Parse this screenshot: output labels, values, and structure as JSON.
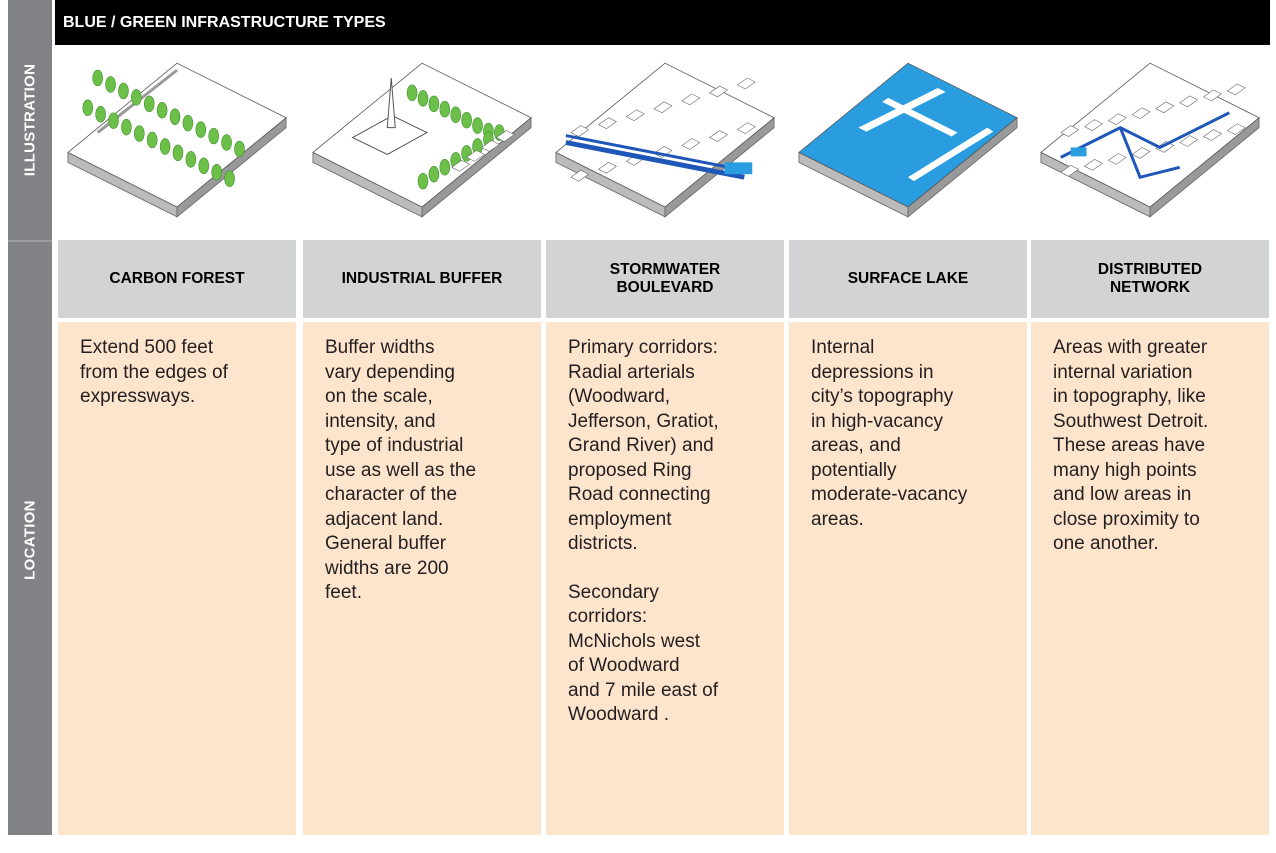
{
  "header": {
    "title": "BLUE / GREEN INFRASTRUCTURE TYPES"
  },
  "row_labels": {
    "illustration": "ILLUSTRATION",
    "location": "LOCATION"
  },
  "columns": [
    {
      "title": [
        "CARBON FOREST"
      ],
      "location": [
        [
          "Extend 500 feet",
          "from the edges of",
          "expressways."
        ]
      ]
    },
    {
      "title": [
        "INDUSTRIAL BUFFER"
      ],
      "location": [
        [
          "Buffer widths",
          "vary depending",
          "on the scale,",
          "intensity, and",
          "type of industrial",
          "use as well as the",
          "character of the",
          "adjacent land.",
          "General buffer",
          "widths are 200",
          "feet."
        ]
      ]
    },
    {
      "title": [
        "STORMWATER",
        "BOULEVARD"
      ],
      "location": [
        [
          "Primary corridors:",
          "Radial arterials",
          "(Woodward,",
          "Jefferson, Gratiot,",
          "Grand River) and",
          "proposed Ring",
          "Road connecting",
          "employment",
          "districts."
        ],
        [
          "Secondary",
          "corridors:",
          "McNichols west",
          "of Woodward",
          "and 7 mile east of",
          "Woodward ."
        ]
      ]
    },
    {
      "title": [
        "SURFACE LAKE"
      ],
      "location": [
        [
          "Internal",
          "depressions in",
          "city’s topography",
          "in high-vacancy",
          "areas, and",
          "potentially",
          "moderate-vacancy",
          "areas."
        ]
      ]
    },
    {
      "title": [
        "DISTRIBUTED",
        "NETWORK"
      ],
      "location": [
        [
          "Areas with greater",
          "internal variation",
          "in topography, like",
          "Southwest Detroit.",
          "These areas have",
          "many high points",
          "and low areas in",
          "close proximity to",
          "one another."
        ]
      ]
    }
  ]
}
